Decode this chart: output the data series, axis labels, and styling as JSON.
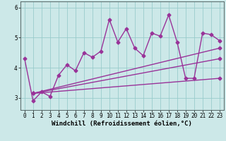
{
  "xlabel": "Windchill (Refroidissement éolien,°C)",
  "ylabel": "",
  "bg_color": "#cce8e8",
  "line_color": "#993399",
  "grid_color": "#99cccc",
  "xlim": [
    -0.5,
    23.5
  ],
  "ylim": [
    2.6,
    6.2
  ],
  "yticks": [
    3,
    4,
    5,
    6
  ],
  "xticks": [
    0,
    1,
    2,
    3,
    4,
    5,
    6,
    7,
    8,
    9,
    10,
    11,
    12,
    13,
    14,
    15,
    16,
    17,
    18,
    19,
    20,
    21,
    22,
    23
  ],
  "series1_x": [
    0,
    1,
    2,
    3,
    4,
    5,
    6,
    7,
    8,
    9,
    10,
    11,
    12,
    13,
    14,
    15,
    16,
    17,
    18,
    19,
    20,
    21,
    22,
    23
  ],
  "series1_y": [
    4.3,
    2.9,
    3.2,
    3.05,
    3.75,
    4.1,
    3.9,
    4.5,
    4.35,
    4.55,
    5.6,
    4.85,
    5.3,
    4.65,
    4.4,
    5.15,
    5.05,
    5.75,
    4.85,
    3.65,
    3.65,
    5.15,
    5.1,
    4.9
  ],
  "series2_x": [
    1,
    23
  ],
  "series2_y": [
    3.15,
    4.65
  ],
  "series3_x": [
    1,
    23
  ],
  "series3_y": [
    3.15,
    4.3
  ],
  "series4_x": [
    1,
    23
  ],
  "series4_y": [
    3.15,
    3.65
  ],
  "marker": "D",
  "markersize": 2.5,
  "linewidth": 1.0,
  "axis_fontsize": 6.5,
  "tick_fontsize": 5.5
}
